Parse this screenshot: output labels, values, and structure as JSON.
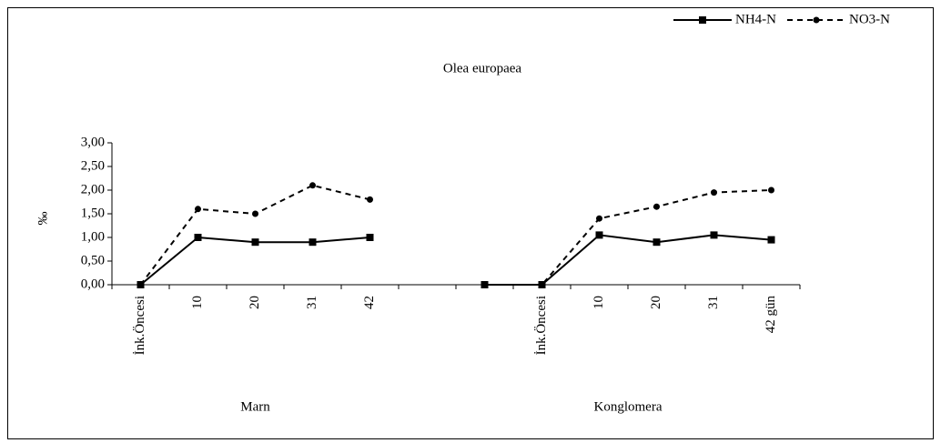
{
  "chart_data": {
    "type": "line",
    "title": "Olea europaea",
    "y_label": "‰",
    "categories": [
      "İnk.Öncesi",
      "10",
      "20",
      "31",
      "42",
      null,
      null,
      "İnk.Öncesi",
      "10",
      "20",
      "31",
      "42 gün"
    ],
    "group_labels": [
      "Marn",
      "Konglomera"
    ],
    "series": [
      {
        "name": "NH4-N",
        "color": "#000000",
        "style": "solid",
        "marker": "square",
        "values": [
          0,
          1.0,
          0.9,
          0.9,
          1.0,
          null,
          0,
          0,
          1.05,
          0.9,
          1.05,
          0.95
        ]
      },
      {
        "name": "NO3-N",
        "color": "#000000",
        "style": "dashed",
        "marker": "circle",
        "values": [
          0,
          1.6,
          1.5,
          2.1,
          1.8,
          null,
          0,
          0,
          1.4,
          1.65,
          1.95,
          2.0
        ]
      }
    ],
    "ylim": [
      0,
      3
    ],
    "yticks": [
      {
        "value": 0,
        "label": "0,00"
      },
      {
        "value": 0.5,
        "label": "0,50"
      },
      {
        "value": 1,
        "label": "1,00"
      },
      {
        "value": 1.5,
        "label": "1,50"
      },
      {
        "value": 2,
        "label": "2,00"
      },
      {
        "value": 2.5,
        "label": "2,50"
      },
      {
        "value": 3,
        "label": "3,00"
      }
    ],
    "legend": "top-right"
  }
}
